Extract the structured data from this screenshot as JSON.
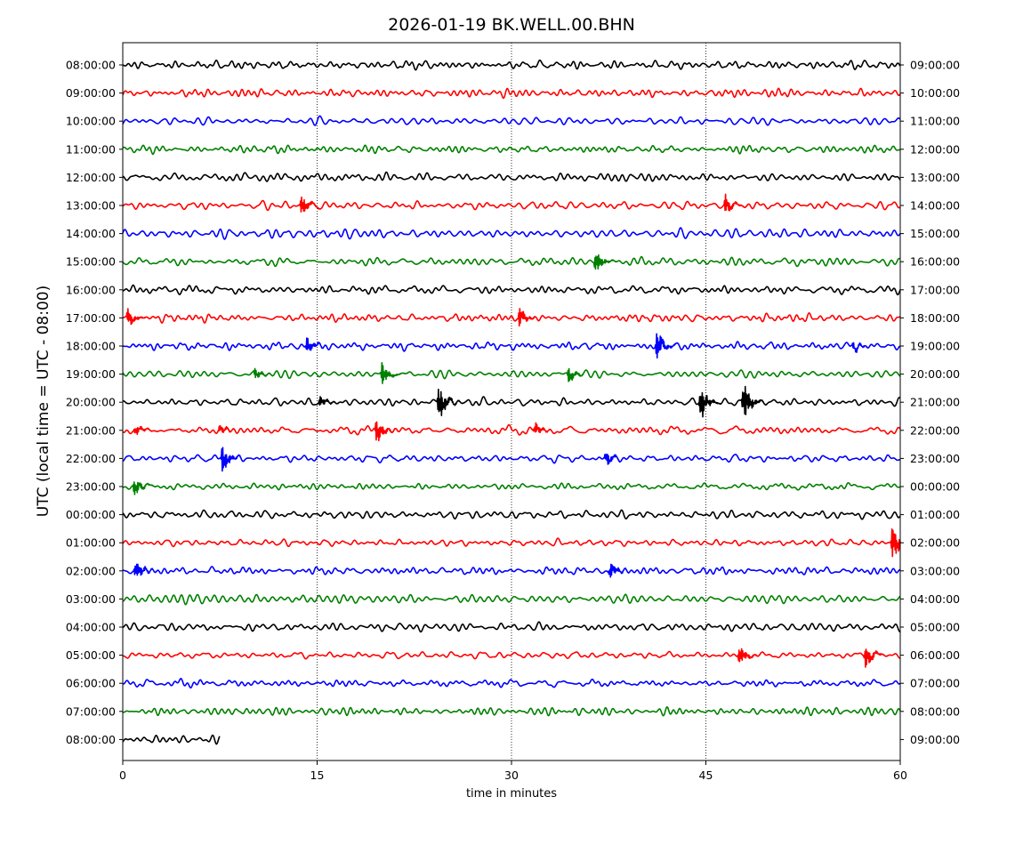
{
  "chart_data": {
    "type": "line",
    "title": "2026-01-19 BK.WELL.00.BHN",
    "xlabel": "time in minutes",
    "ylabel": "UTC (local time = UTC - 08:00)",
    "xlim": [
      0,
      60
    ],
    "x_ticks": [
      "0",
      "15",
      "30",
      "45",
      "60"
    ],
    "x_tick_values": [
      0,
      15,
      30,
      45,
      60
    ],
    "vertical_gridlines": [
      15,
      30,
      45
    ],
    "left_labels": [
      "08:00:00",
      "09:00:00",
      "10:00:00",
      "11:00:00",
      "12:00:00",
      "13:00:00",
      "14:00:00",
      "15:00:00",
      "16:00:00",
      "17:00:00",
      "18:00:00",
      "19:00:00",
      "20:00:00",
      "21:00:00",
      "22:00:00",
      "23:00:00",
      "00:00:00",
      "01:00:00",
      "02:00:00",
      "03:00:00",
      "04:00:00",
      "05:00:00",
      "06:00:00",
      "07:00:00",
      "08:00:00"
    ],
    "right_labels": [
      "09:00:00",
      "10:00:00",
      "11:00:00",
      "12:00:00",
      "13:00:00",
      "14:00:00",
      "15:00:00",
      "16:00:00",
      "17:00:00",
      "18:00:00",
      "19:00:00",
      "20:00:00",
      "21:00:00",
      "22:00:00",
      "23:00:00",
      "00:00:00",
      "01:00:00",
      "02:00:00",
      "03:00:00",
      "04:00:00",
      "05:00:00",
      "06:00:00",
      "07:00:00",
      "08:00:00",
      "09:00:00"
    ],
    "trace_colors": [
      "#000000",
      "#ff0000",
      "#0000ff",
      "#008000"
    ],
    "last_trace_end_minute": 7.5,
    "events": [
      {
        "row": 5,
        "minute": 13.8,
        "amp": 1.2
      },
      {
        "row": 5,
        "minute": 46.5,
        "amp": 1.0
      },
      {
        "row": 7,
        "minute": 36.5,
        "amp": 1.4
      },
      {
        "row": 9,
        "minute": 0.4,
        "amp": 1.0
      },
      {
        "row": 9,
        "minute": 30.6,
        "amp": 1.1
      },
      {
        "row": 10,
        "minute": 14.2,
        "amp": 0.9
      },
      {
        "row": 10,
        "minute": 41.2,
        "amp": 1.8
      },
      {
        "row": 10,
        "minute": 56.4,
        "amp": 0.5
      },
      {
        "row": 11,
        "minute": 10.2,
        "amp": 0.6
      },
      {
        "row": 11,
        "minute": 20.0,
        "amp": 1.4
      },
      {
        "row": 11,
        "minute": 34.4,
        "amp": 0.9
      },
      {
        "row": 12,
        "minute": 15.2,
        "amp": 0.6
      },
      {
        "row": 12,
        "minute": 24.4,
        "amp": 2.3
      },
      {
        "row": 12,
        "minute": 44.6,
        "amp": 2.0
      },
      {
        "row": 12,
        "minute": 47.9,
        "amp": 2.8
      },
      {
        "row": 13,
        "minute": 1.0,
        "amp": 0.6
      },
      {
        "row": 13,
        "minute": 7.5,
        "amp": 0.5
      },
      {
        "row": 13,
        "minute": 19.6,
        "amp": 1.5
      },
      {
        "row": 13,
        "minute": 31.8,
        "amp": 0.7
      },
      {
        "row": 14,
        "minute": 7.7,
        "amp": 1.7
      },
      {
        "row": 14,
        "minute": 37.3,
        "amp": 0.8
      },
      {
        "row": 15,
        "minute": 0.9,
        "amp": 1.0
      },
      {
        "row": 17,
        "minute": 59.4,
        "amp": 2.3
      },
      {
        "row": 18,
        "minute": 1.0,
        "amp": 1.2
      },
      {
        "row": 18,
        "minute": 37.6,
        "amp": 1.0
      },
      {
        "row": 21,
        "minute": 47.6,
        "amp": 1.2
      },
      {
        "row": 21,
        "minute": 57.3,
        "amp": 1.5
      }
    ],
    "grid": "vertical dotted at 15, 30, 45",
    "legend": "none"
  }
}
